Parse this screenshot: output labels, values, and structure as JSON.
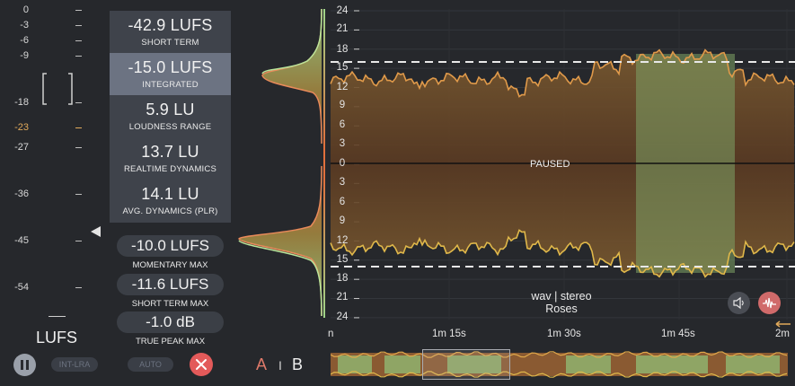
{
  "meter": {
    "scale": [
      "0",
      "-3",
      "-6",
      "-9",
      "-18",
      "-23",
      "-27",
      "-36",
      "-45",
      "-54"
    ],
    "unit_label": "LUFS"
  },
  "stats": {
    "short_term_value": "-42.9 LUFS",
    "short_term_label": "SHORT TERM",
    "integrated_value": "-15.0 LUFS",
    "integrated_label": "INTEGRATED",
    "range_value": "5.9 LU",
    "range_label": "LOUDNESS RANGE",
    "realtime_value": "13.7 LU",
    "realtime_label": "REALTIME DYNAMICS",
    "plr_value": "14.1 LU",
    "plr_label": "AVG. DYNAMICS (PLR)",
    "momentary_max_value": "-10.0 LUFS",
    "momentary_max_label": "MOMENTARY MAX",
    "short_term_max_value": "-11.6 LUFS",
    "short_term_max_label": "SHORT TERM MAX",
    "true_peak_max_value": "-1.0 dB",
    "true_peak_max_label": "TRUE PEAK MAX"
  },
  "controls": {
    "int_lra_label": "INT-LRA",
    "auto_label": "AUTO",
    "a_label": "A",
    "sep_label": "I",
    "b_label": "B"
  },
  "graph": {
    "y_ticks": [
      "24",
      "21",
      "18",
      "15",
      "12",
      "9",
      "6",
      "3",
      "0",
      "3",
      "6",
      "9",
      "12",
      "15",
      "18",
      "21",
      "24"
    ],
    "x_ticks": [
      "n",
      "1m 15s",
      "1m 30s",
      "1m 45s",
      "2m"
    ],
    "status_text": "PAUSED",
    "file_info": "wav | stereo",
    "track_name": "Roses"
  },
  "colors": {
    "accent_target": "#e0a95a",
    "waveform_green": "#a9d98a",
    "waveform_orange": "#e07a4a",
    "close_button": "#e35a5a"
  }
}
